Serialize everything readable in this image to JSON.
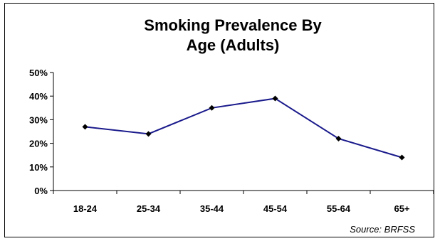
{
  "chart_data": {
    "type": "line",
    "title_lines": [
      "Smoking Prevalence By",
      "Age (Adults)"
    ],
    "categories": [
      "18-24",
      "25-34",
      "35-44",
      "45-54",
      "55-64",
      "65+"
    ],
    "series": [
      {
        "values": [
          27,
          24,
          35,
          39,
          22,
          14
        ]
      }
    ],
    "y_ticks": [
      "0%",
      "10%",
      "20%",
      "30%",
      "40%",
      "50%"
    ],
    "ylim": [
      0,
      50
    ],
    "y_unit": "%",
    "grid": false,
    "legend": "none",
    "colors": {
      "line": "#1a1a8c",
      "marker": "#000000",
      "axis": "#000000"
    },
    "source": "Source: BRFSS"
  }
}
